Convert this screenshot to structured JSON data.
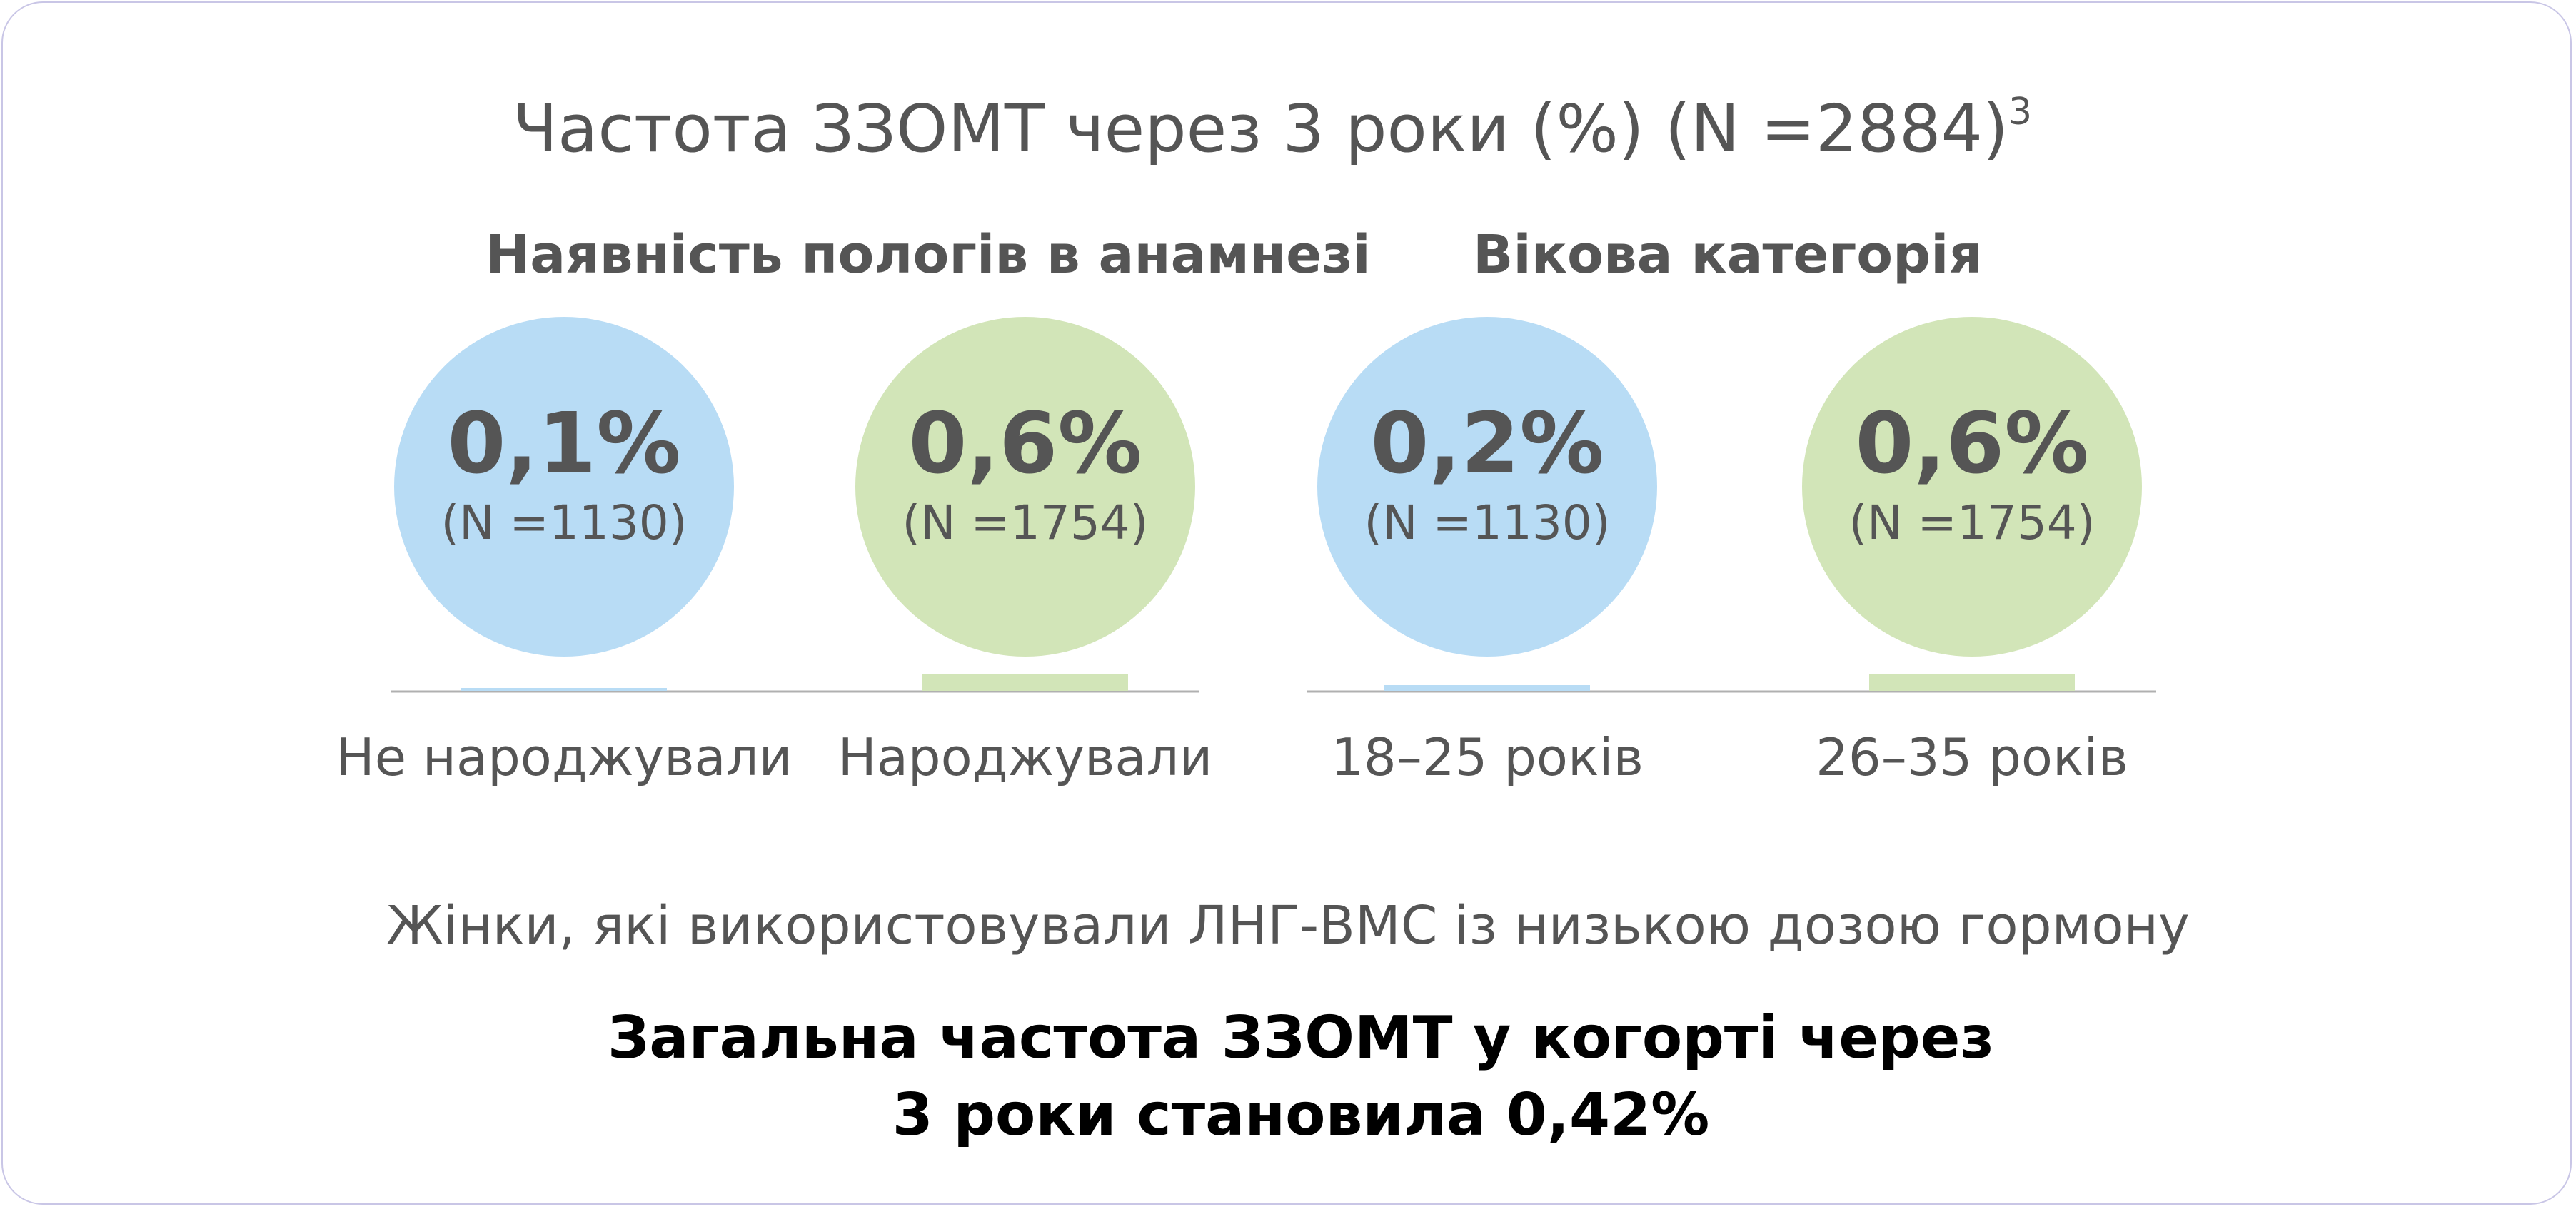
{
  "title": {
    "text": "Частота ЗЗОМТ через 3 роки (%) (N =2884)",
    "superscript": "3"
  },
  "groups": [
    {
      "heading": "Наявність пологів в анамнезі"
    },
    {
      "heading": "Вікова категорія"
    }
  ],
  "colors": {
    "blue": "#b8dcf5",
    "green": "#d2e5b8",
    "text_dark": "#555555",
    "text_black": "#000000",
    "baseline": "#b0b0b0",
    "border": "#c9c6e6"
  },
  "chart_data": {
    "type": "bar",
    "unit": "%",
    "categories": [
      "Не народжували",
      "Народжували",
      "18–25 років",
      "26–35 років"
    ],
    "values": [
      0.1,
      0.6,
      0.2,
      0.6
    ],
    "value_labels": [
      "0,1%",
      "0,6%",
      "0,2%",
      "0,6%"
    ],
    "n_labels": [
      "(N =1130)",
      "(N =1754)",
      "(N =1130)",
      "(N =1754)"
    ],
    "series_colors": [
      "blue",
      "green",
      "blue",
      "green"
    ],
    "ylim": [
      0,
      10
    ],
    "grid": false,
    "legend": "none"
  },
  "caption": "Жінки, які використовували ЛНГ-ВМС із низькою дозою гормону",
  "summary": {
    "line1": "Загальна частота ЗЗОМТ у когорті через",
    "line2": "3 роки становила 0,42%"
  }
}
